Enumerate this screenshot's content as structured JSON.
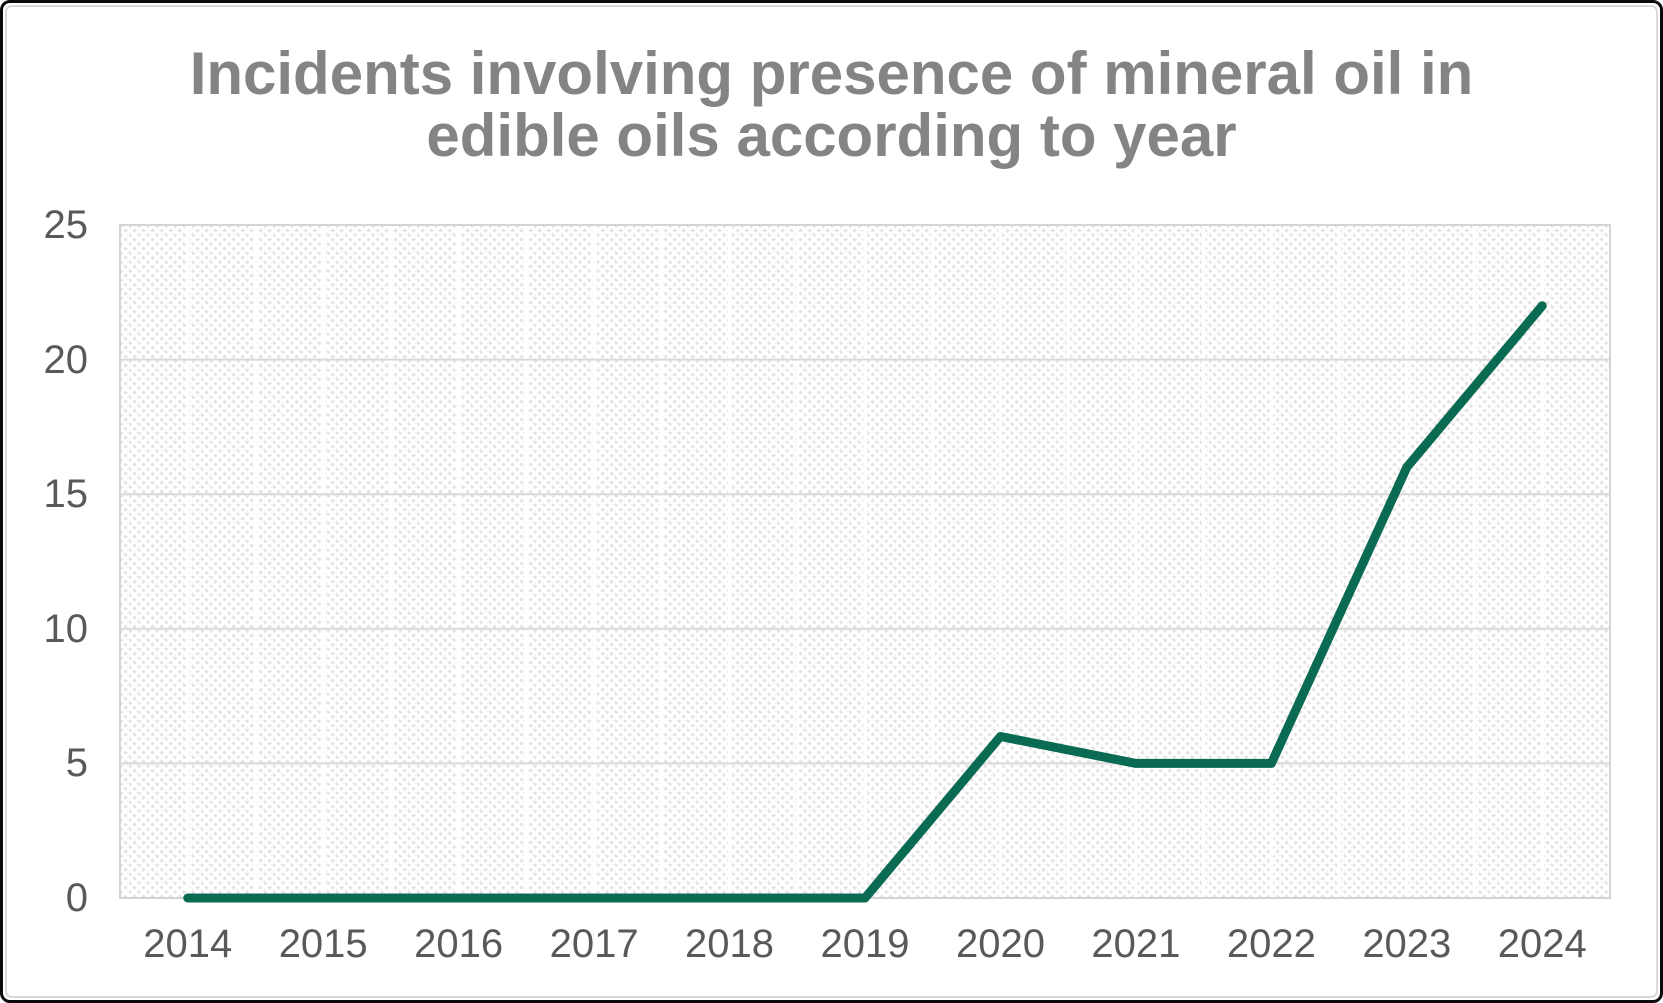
{
  "chart_data": {
    "type": "line",
    "title_lines": [
      "Incidents involving presence of mineral oil in",
      "edible oils according to year"
    ],
    "categories": [
      "2014",
      "2015",
      "2016",
      "2017",
      "2018",
      "2019",
      "2020",
      "2021",
      "2022",
      "2023",
      "2024"
    ],
    "series": [
      {
        "values": [
          0,
          0,
          0,
          0,
          0,
          0,
          6,
          5,
          5,
          16,
          22
        ]
      }
    ],
    "xlabel": "",
    "ylabel": "",
    "ylim": [
      0,
      25
    ],
    "yticks": [
      0,
      5,
      10,
      15,
      20,
      25
    ],
    "grid": "on",
    "legend": "none",
    "plot_area_background": "diagonal-hatch",
    "styles": {
      "line_color": "#0b6b52",
      "title_color": "#848484",
      "tick_label_color": "#595959",
      "gridline_color": "#d9d9d9",
      "vertical_gridline_color": "#ffffff",
      "hatch_color": "#e4e4e4",
      "plot_border_color": "#d4d4d4",
      "frame_border_color": "#0a0a0a",
      "canvas_bg": "#ffffff"
    }
  }
}
